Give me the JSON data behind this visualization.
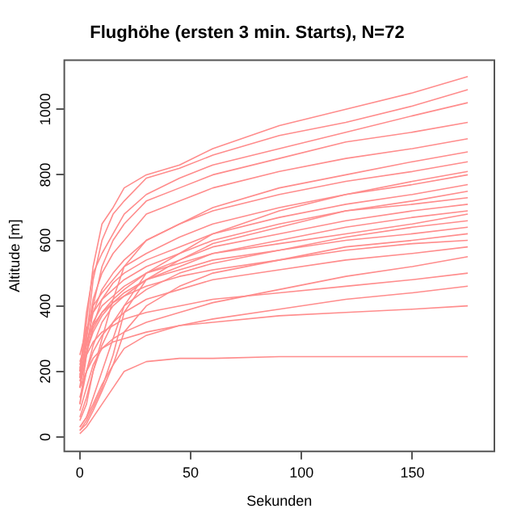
{
  "chart_data": {
    "type": "line",
    "title": "Flughöhe (ersten 3 min. Starts), N=72",
    "xlabel": "Sekunden",
    "ylabel": "Altitude [m]",
    "color": "#ff8c8c",
    "marker": "none",
    "line_style": "solid",
    "grid": false,
    "legend": false,
    "xlim": [
      -7,
      187
    ],
    "xticks": [
      0,
      50,
      100,
      150
    ],
    "ylim": [
      -44,
      1150
    ],
    "yticks": [
      0,
      200,
      400,
      600,
      800,
      1000
    ],
    "x": [
      0,
      3,
      6,
      10,
      15,
      20,
      30,
      45,
      60,
      90,
      120,
      150,
      175
    ],
    "series": [
      {
        "values": [
          180,
          350,
          520,
          650,
          700,
          760,
          800,
          830,
          880,
          950,
          1000,
          1050,
          1100
        ]
      },
      {
        "values": [
          150,
          300,
          480,
          600,
          680,
          720,
          790,
          820,
          860,
          920,
          960,
          1010,
          1060
        ]
      },
      {
        "values": [
          200,
          380,
          500,
          560,
          620,
          680,
          740,
          790,
          830,
          880,
          930,
          980,
          1020
        ]
      },
      {
        "values": [
          100,
          250,
          400,
          520,
          600,
          650,
          720,
          760,
          800,
          850,
          900,
          930,
          960
        ]
      },
      {
        "values": [
          220,
          300,
          420,
          500,
          560,
          600,
          680,
          720,
          760,
          810,
          850,
          880,
          910
        ]
      },
      {
        "values": [
          50,
          100,
          200,
          300,
          420,
          520,
          600,
          650,
          700,
          760,
          800,
          840,
          870
        ]
      },
      {
        "values": [
          180,
          280,
          380,
          450,
          500,
          540,
          600,
          650,
          690,
          740,
          780,
          810,
          840
        ]
      },
      {
        "values": [
          30,
          60,
          120,
          200,
          300,
          400,
          500,
          560,
          620,
          690,
          740,
          780,
          810
        ]
      },
      {
        "values": [
          200,
          320,
          400,
          440,
          480,
          520,
          560,
          610,
          650,
          700,
          740,
          770,
          800
        ]
      },
      {
        "values": [
          150,
          250,
          340,
          420,
          470,
          500,
          540,
          580,
          620,
          670,
          710,
          740,
          770
        ]
      },
      {
        "values": [
          20,
          50,
          90,
          150,
          250,
          380,
          480,
          540,
          590,
          640,
          690,
          720,
          750
        ]
      },
      {
        "values": [
          250,
          330,
          380,
          420,
          450,
          480,
          520,
          560,
          600,
          650,
          690,
          710,
          730
        ]
      },
      {
        "values": [
          170,
          260,
          330,
          380,
          420,
          450,
          500,
          540,
          580,
          620,
          660,
          690,
          710
        ]
      },
      {
        "values": [
          100,
          200,
          280,
          350,
          400,
          430,
          480,
          520,
          560,
          600,
          640,
          670,
          690
        ]
      },
      {
        "values": [
          210,
          280,
          350,
          400,
          430,
          460,
          500,
          530,
          560,
          590,
          620,
          650,
          680
        ]
      },
      {
        "values": [
          60,
          120,
          200,
          280,
          350,
          400,
          450,
          500,
          530,
          570,
          610,
          640,
          660
        ]
      },
      {
        "values": [
          190,
          260,
          320,
          370,
          410,
          440,
          480,
          510,
          540,
          570,
          600,
          620,
          640
        ]
      },
      {
        "values": [
          20,
          40,
          80,
          140,
          220,
          320,
          400,
          460,
          500,
          540,
          580,
          600,
          620
        ]
      },
      {
        "values": [
          230,
          290,
          340,
          380,
          410,
          430,
          460,
          490,
          510,
          540,
          570,
          590,
          600
        ]
      },
      {
        "values": [
          120,
          200,
          260,
          310,
          350,
          380,
          420,
          450,
          480,
          510,
          540,
          560,
          580
        ]
      },
      {
        "values": [
          80,
          150,
          220,
          270,
          300,
          320,
          350,
          380,
          410,
          450,
          490,
          520,
          550
        ]
      },
      {
        "values": [
          200,
          250,
          290,
          320,
          340,
          360,
          380,
          400,
          420,
          440,
          460,
          480,
          500
        ]
      },
      {
        "values": [
          30,
          60,
          100,
          160,
          220,
          270,
          310,
          340,
          360,
          390,
          420,
          440,
          460
        ]
      },
      {
        "values": [
          150,
          200,
          240,
          270,
          290,
          300,
          320,
          340,
          350,
          370,
          380,
          390,
          400
        ]
      },
      {
        "values": [
          10,
          30,
          60,
          100,
          150,
          200,
          230,
          240,
          240,
          245,
          245,
          245,
          245
        ]
      }
    ]
  }
}
